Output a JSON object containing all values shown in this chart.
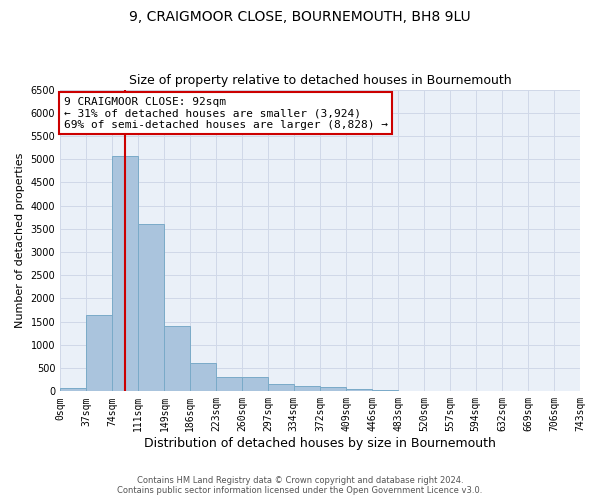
{
  "title": "9, CRAIGMOOR CLOSE, BOURNEMOUTH, BH8 9LU",
  "subtitle": "Size of property relative to detached houses in Bournemouth",
  "xlabel": "Distribution of detached houses by size in Bournemouth",
  "ylabel": "Number of detached properties",
  "footer_line1": "Contains HM Land Registry data © Crown copyright and database right 2024.",
  "footer_line2": "Contains public sector information licensed under the Open Government Licence v3.0.",
  "bar_edges": [
    0,
    37,
    74,
    111,
    149,
    186,
    223,
    260,
    297,
    334,
    372,
    409,
    446,
    483,
    520,
    557,
    594,
    632,
    669,
    706,
    743
  ],
  "bar_heights": [
    75,
    1650,
    5075,
    3600,
    1400,
    610,
    300,
    300,
    150,
    115,
    85,
    55,
    30,
    0,
    0,
    0,
    0,
    0,
    0,
    0
  ],
  "bar_color": "#aac4dd",
  "bar_edge_color": "#7aaac8",
  "property_size": 92,
  "vline_color": "#cc0000",
  "annotation_line1": "9 CRAIGMOOR CLOSE: 92sqm",
  "annotation_line2": "← 31% of detached houses are smaller (3,924)",
  "annotation_line3": "69% of semi-detached houses are larger (8,828) →",
  "annotation_box_color": "#ffffff",
  "annotation_box_edge_color": "#cc0000",
  "ylim": [
    0,
    6500
  ],
  "xlim": [
    0,
    743
  ],
  "yticks": [
    0,
    500,
    1000,
    1500,
    2000,
    2500,
    3000,
    3500,
    4000,
    4500,
    5000,
    5500,
    6000,
    6500
  ],
  "xtick_labels": [
    "0sqm",
    "37sqm",
    "74sqm",
    "111sqm",
    "149sqm",
    "186sqm",
    "223sqm",
    "260sqm",
    "297sqm",
    "334sqm",
    "372sqm",
    "409sqm",
    "446sqm",
    "483sqm",
    "520sqm",
    "557sqm",
    "594sqm",
    "632sqm",
    "669sqm",
    "706sqm",
    "743sqm"
  ],
  "grid_color": "#d0d8e8",
  "bg_color": "#eaf0f8",
  "title_fontsize": 10,
  "subtitle_fontsize": 9,
  "xlabel_fontsize": 9,
  "ylabel_fontsize": 8,
  "tick_fontsize": 7,
  "annotation_fontsize": 8,
  "footer_fontsize": 6
}
